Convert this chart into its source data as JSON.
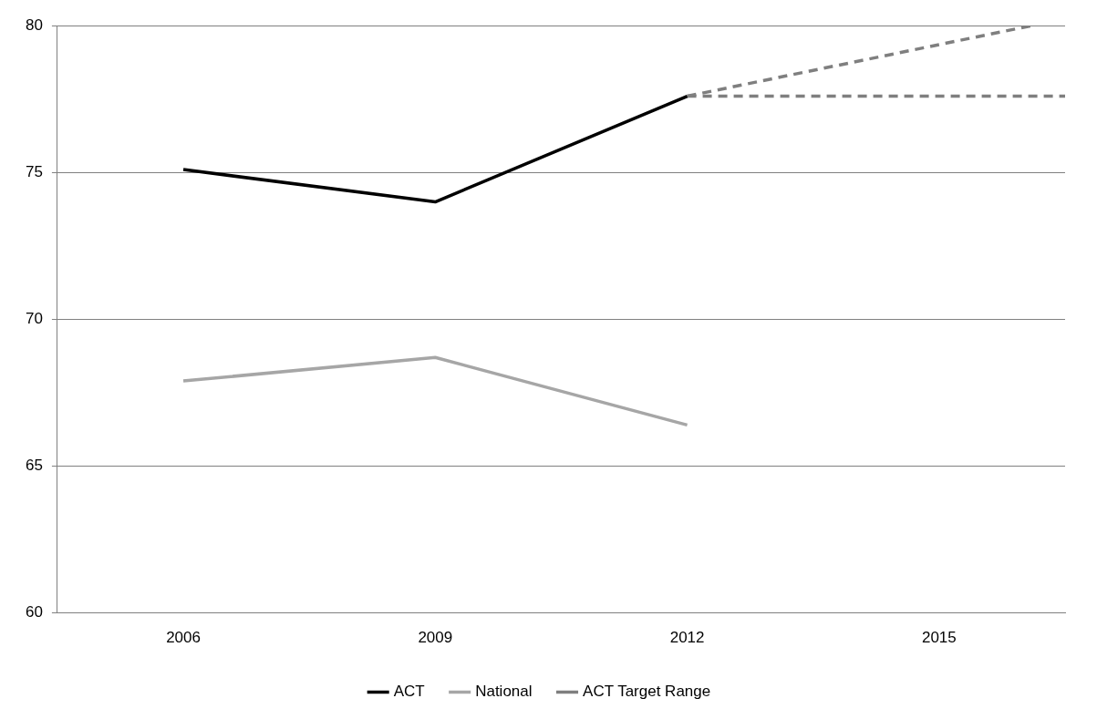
{
  "chart_data": {
    "type": "line",
    "xlim": [
      2004.5,
      2016.5
    ],
    "xticks": [
      2006,
      2009,
      2012,
      2015
    ],
    "ylim": [
      60,
      80
    ],
    "yticks": [
      60,
      65,
      70,
      75,
      80
    ],
    "grid": "y",
    "legend": "bottom",
    "marker": "none",
    "series": [
      {
        "name": "ACT",
        "color": "#000000",
        "x": [
          2006,
          2009,
          2012
        ],
        "values": [
          75.1,
          74.0,
          77.6
        ]
      },
      {
        "name": "National",
        "color": "#a6a6a6",
        "x": [
          2006,
          2009,
          2012
        ],
        "values": [
          67.9,
          68.7,
          66.4
        ]
      },
      {
        "name": "ACT Target Range",
        "color": "#7f7f7f",
        "line_style": "dashed",
        "x": [
          2012,
          2016.1
        ],
        "values": [
          77.6,
          80
        ]
      },
      {
        "color": "#7f7f7f",
        "line_style": "dashed",
        "x": [
          2012,
          2016.5
        ],
        "values": [
          77.6,
          77.6
        ]
      }
    ]
  }
}
